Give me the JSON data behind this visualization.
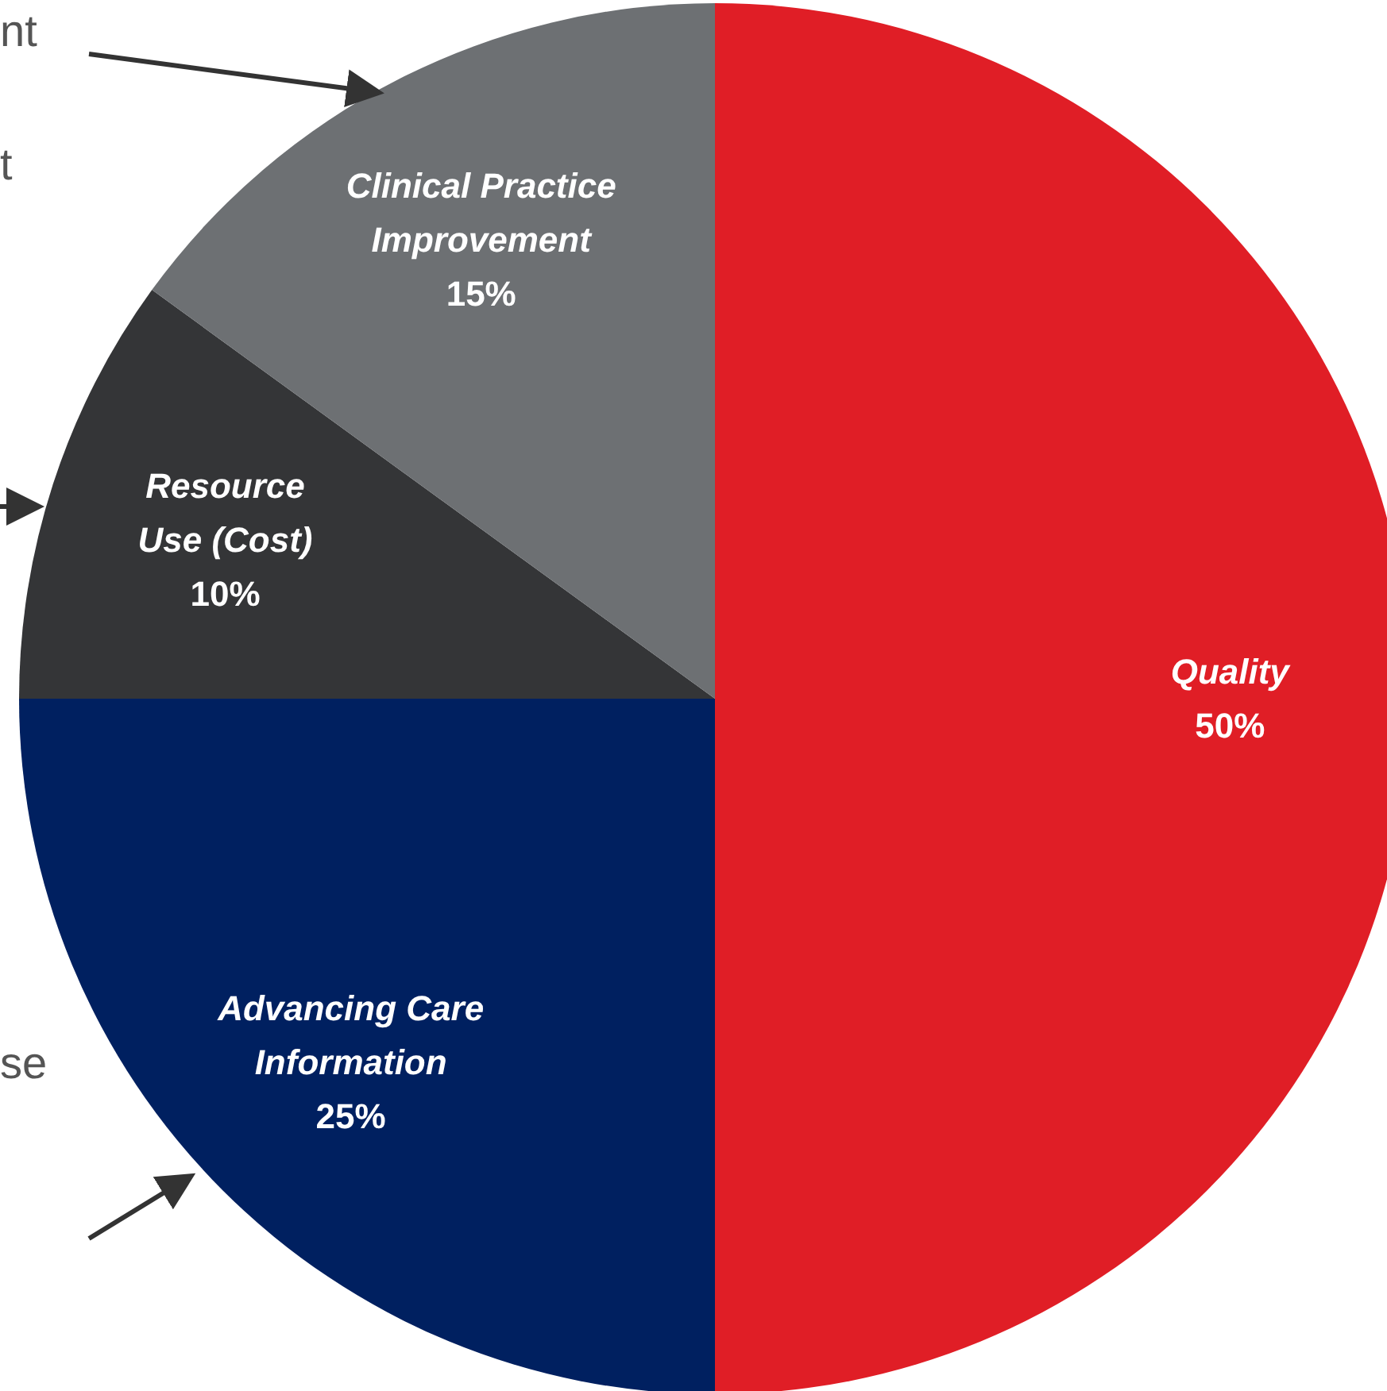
{
  "chart_data": {
    "type": "pie",
    "categories": [
      "Quality",
      "Advancing Care Information",
      "Resource Use (Cost)",
      "Clinical Practice Improvement"
    ],
    "values": [
      50,
      25,
      10,
      15
    ],
    "value_labels": [
      "50%",
      "25%",
      "10%",
      "15%"
    ],
    "colors": [
      "#e01e26",
      "#002060",
      "#343537",
      "#6d7073"
    ],
    "legend": false,
    "annotations": [
      "nt",
      "t",
      "se"
    ]
  }
}
